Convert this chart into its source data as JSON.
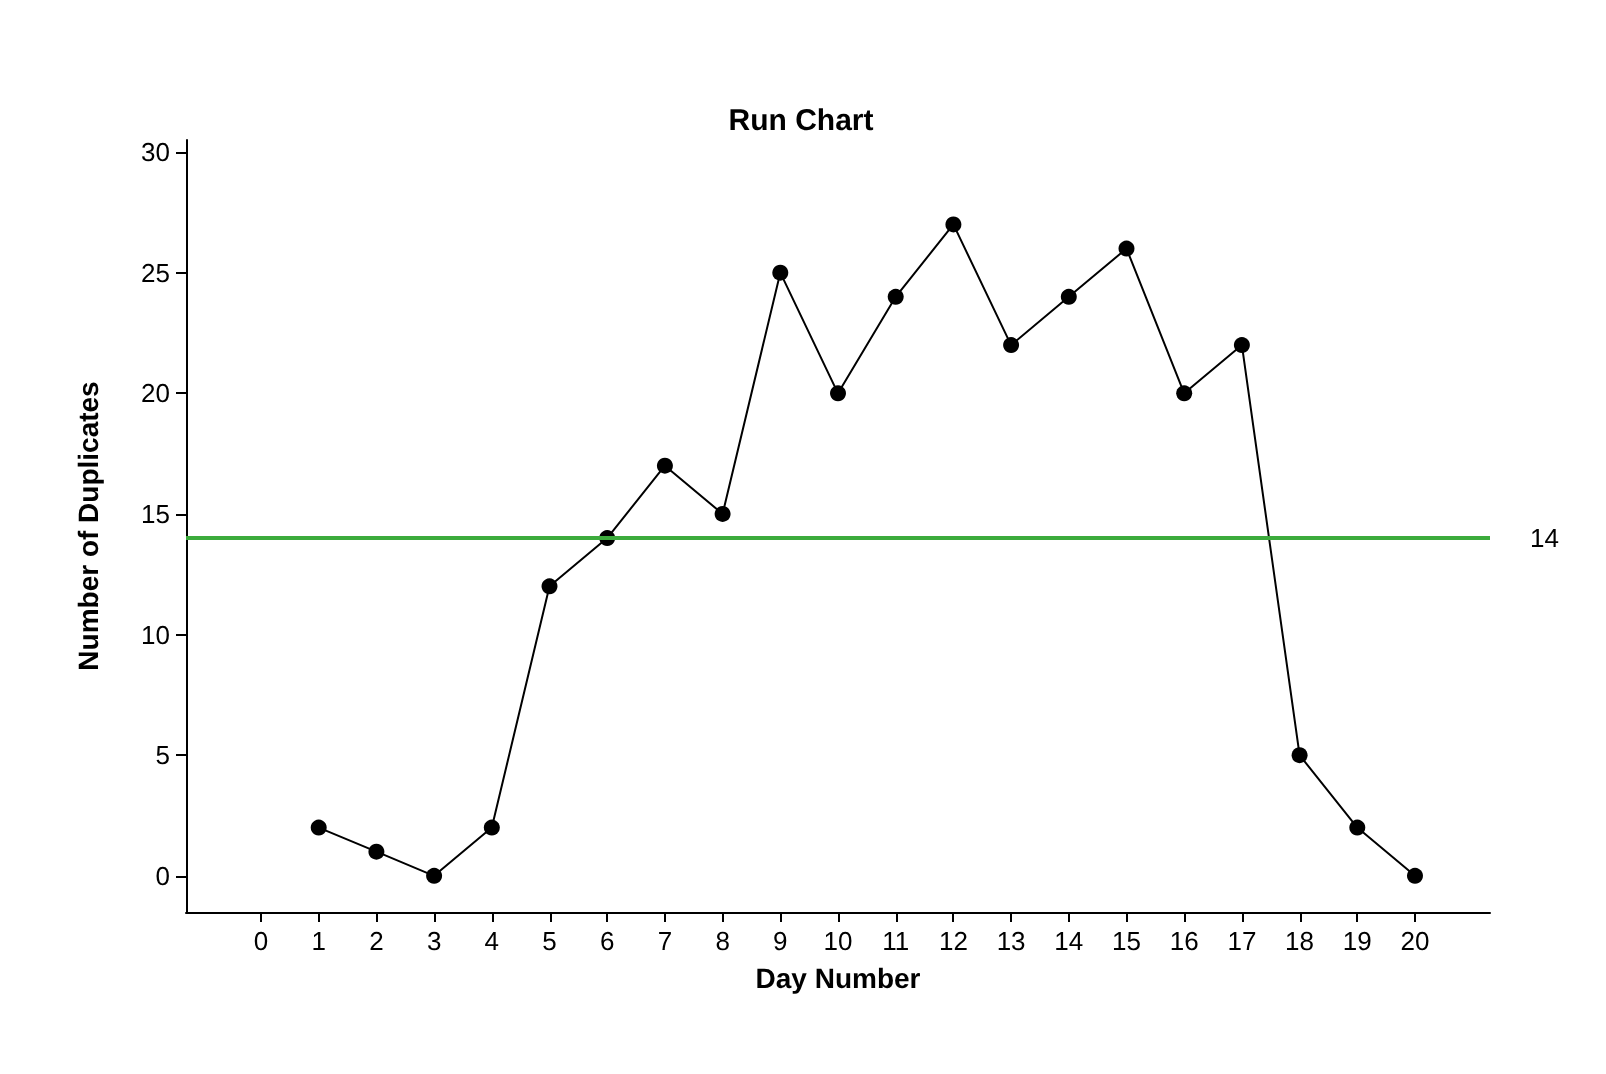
{
  "chart_data": {
    "type": "line",
    "title": "Run Chart",
    "xlabel": "Day Number",
    "ylabel": "Number of Duplicates",
    "x": [
      1,
      2,
      3,
      4,
      5,
      6,
      7,
      8,
      9,
      10,
      11,
      12,
      13,
      14,
      15,
      16,
      17,
      18,
      19,
      20
    ],
    "series": [
      {
        "color": "#000000",
        "values": [
          2,
          1,
          0,
          2,
          12,
          14,
          17,
          15,
          25,
          20,
          24,
          27,
          22,
          24,
          26,
          20,
          22,
          5,
          2,
          0
        ]
      }
    ],
    "xlim": [
      -1.3,
      21.3
    ],
    "xticks": [
      0,
      1,
      2,
      3,
      4,
      5,
      6,
      7,
      8,
      9,
      10,
      11,
      12,
      13,
      14,
      15,
      16,
      17,
      18,
      19,
      20
    ],
    "ylim": [
      -1.5,
      30.5
    ],
    "yticks": [
      0,
      5,
      10,
      15,
      20,
      25,
      30
    ],
    "ref_lines": [
      {
        "axis": "y",
        "value": 14,
        "label": "14",
        "color": "#3cab3c"
      }
    ],
    "grid": false,
    "marker": "circle",
    "line_style": "solid"
  }
}
